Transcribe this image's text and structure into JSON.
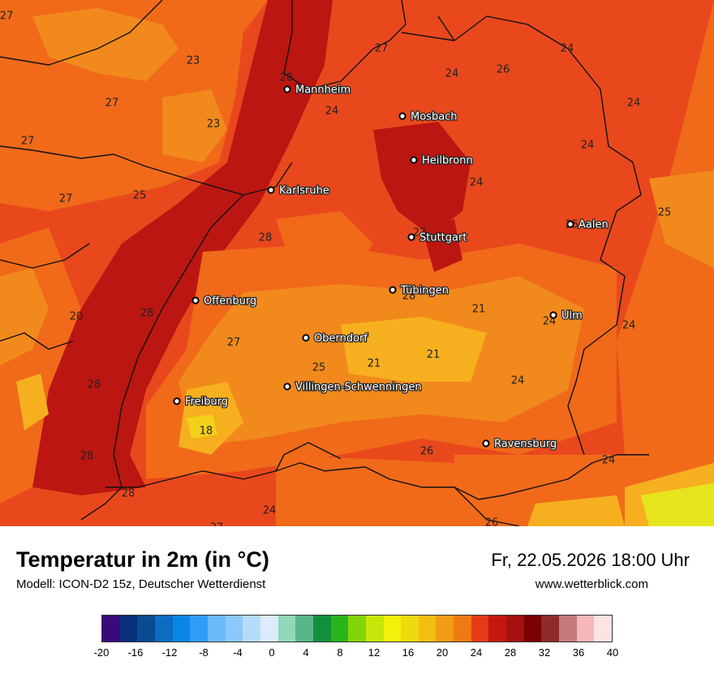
{
  "header": {
    "title": "Temperatur in 2m (in °C)",
    "model": "Modell: ICON-D2 15z, Deutscher Wetterdienst",
    "datetime": "Fr, 22.05.2026 18:00 Uhr",
    "website": "www.wetterblick.com"
  },
  "colors": {
    "base": "#e9481d",
    "hot": "#bc1612",
    "warm": "#f06a1a",
    "mild": "#f2891c",
    "cool": "#f6b01f",
    "cold": "#f3d01a",
    "yellow": "#e5e51e",
    "border": "#111111"
  },
  "cities": [
    {
      "name": "Mannheim"
    },
    {
      "name": "Mosbach"
    },
    {
      "name": "Heilbronn"
    },
    {
      "name": "Karlsruhe"
    },
    {
      "name": "Stuttgart"
    },
    {
      "name": "Aalen"
    },
    {
      "name": "Tübingen"
    },
    {
      "name": "Ulm"
    },
    {
      "name": "Offenburg"
    },
    {
      "name": "Oberndorf"
    },
    {
      "name": "Villingen-Schwenningen"
    },
    {
      "name": "Freiburg"
    },
    {
      "name": "Ravensburg"
    }
  ],
  "values": [
    "27",
    "23",
    "28",
    "27",
    "24",
    "26",
    "24",
    "27",
    "23",
    "24",
    "27",
    "24",
    "24",
    "27",
    "25",
    "24",
    "25",
    "27",
    "28",
    "25",
    "28",
    "21",
    "20",
    "28",
    "27",
    "24",
    "24",
    "25",
    "21",
    "21",
    "28",
    "24",
    "18",
    "26",
    "28",
    "24",
    "28",
    "24",
    "27",
    "26"
  ],
  "colorbar": {
    "colors": [
      "#3a0a7c",
      "#08307a",
      "#0a4a92",
      "#0b6cc0",
      "#0a86e6",
      "#2f9df7",
      "#6ab9fb",
      "#8cc8fb",
      "#b6dcfc",
      "#dbecfd",
      "#8fd9b8",
      "#5ab58b",
      "#138f3c",
      "#27b51c",
      "#82d40b",
      "#c6e60a",
      "#f2f20a",
      "#f0d80f",
      "#f1bf12",
      "#f39b14",
      "#ef7a14",
      "#e53a17",
      "#c5170f",
      "#a61010",
      "#7a0202",
      "#8e2a2a",
      "#c57a7a",
      "#f5b7b7",
      "#ffe3e3"
    ],
    "ticks": [
      "-20",
      "-16",
      "-12",
      "-8",
      "-4",
      "0",
      "4",
      "8",
      "12",
      "16",
      "20",
      "24",
      "28",
      "32",
      "36",
      "40"
    ]
  }
}
